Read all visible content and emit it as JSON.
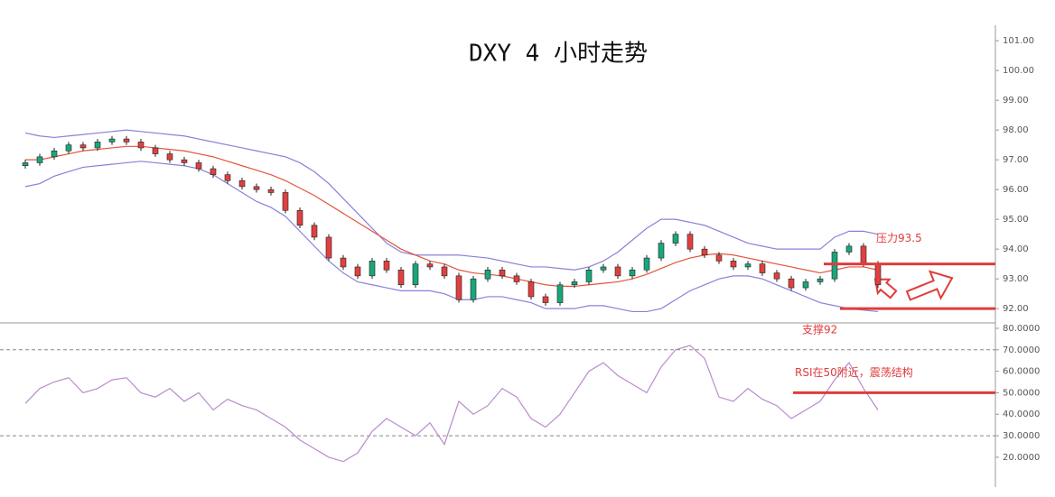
{
  "chart_data": [
    {
      "type": "candlestick",
      "title": "DXY 4 小时走势",
      "ylim": [
        91.52,
        101.52
      ],
      "yticks": [
        {
          "value": 92,
          "label": "92.00"
        },
        {
          "value": 93,
          "label": "93.00"
        },
        {
          "value": 94,
          "label": "94.00"
        },
        {
          "value": 95,
          "label": "95.00"
        },
        {
          "value": 96,
          "label": "96.00"
        },
        {
          "value": 97,
          "label": "97.00"
        },
        {
          "value": 98,
          "label": "98.00"
        },
        {
          "value": 99,
          "label": "99.00"
        },
        {
          "value": 100,
          "label": "100.00"
        },
        {
          "value": 101,
          "label": "101.00"
        }
      ],
      "up_color": "#1aa67a",
      "down_color": "#e04040",
      "open": [
        96.8,
        96.9,
        97.1,
        97.3,
        97.5,
        97.4,
        97.6,
        97.7,
        97.6,
        97.4,
        97.2,
        97.0,
        96.9,
        96.7,
        96.5,
        96.3,
        96.1,
        96.0,
        95.9,
        95.3,
        94.8,
        94.4,
        93.7,
        93.4,
        93.1,
        93.6,
        93.3,
        92.8,
        93.5,
        93.4,
        93.1,
        92.3,
        93.0,
        93.3,
        93.1,
        92.9,
        92.4,
        92.2,
        92.8,
        92.9,
        93.3,
        93.4,
        93.1,
        93.3,
        93.7,
        94.2,
        94.5,
        94.0,
        93.8,
        93.6,
        93.4,
        93.5,
        93.2,
        93.0,
        92.7,
        92.9,
        93.0,
        93.9,
        94.1,
        93.5
      ],
      "high": [
        97.0,
        97.2,
        97.4,
        97.6,
        97.6,
        97.7,
        97.8,
        97.8,
        97.7,
        97.5,
        97.3,
        97.1,
        97.0,
        96.8,
        96.6,
        96.4,
        96.2,
        96.1,
        96.0,
        95.4,
        94.9,
        94.5,
        93.8,
        93.5,
        93.7,
        93.7,
        93.4,
        93.6,
        93.6,
        93.5,
        93.2,
        93.1,
        93.4,
        93.4,
        93.2,
        93.0,
        92.5,
        92.9,
        93.0,
        93.4,
        93.5,
        93.5,
        93.4,
        93.8,
        94.3,
        94.6,
        94.6,
        94.1,
        93.9,
        93.7,
        93.6,
        93.6,
        93.3,
        93.1,
        93.0,
        93.1,
        94.0,
        94.2,
        94.2,
        93.6
      ],
      "low": [
        96.7,
        96.8,
        97.0,
        97.2,
        97.3,
        97.3,
        97.5,
        97.5,
        97.3,
        97.1,
        96.9,
        96.8,
        96.6,
        96.4,
        96.2,
        96.0,
        95.9,
        95.8,
        95.2,
        94.7,
        94.3,
        93.6,
        93.3,
        93.0,
        93.0,
        93.2,
        92.7,
        92.7,
        93.3,
        93.0,
        92.2,
        92.2,
        92.9,
        93.0,
        92.8,
        92.3,
        92.1,
        92.1,
        92.7,
        92.8,
        93.2,
        93.0,
        93.0,
        93.2,
        93.6,
        94.1,
        93.9,
        93.7,
        93.5,
        93.3,
        93.3,
        93.1,
        92.9,
        92.6,
        92.6,
        92.8,
        92.9,
        93.8,
        93.4,
        92.7
      ],
      "close": [
        96.9,
        97.1,
        97.3,
        97.5,
        97.4,
        97.6,
        97.7,
        97.6,
        97.4,
        97.2,
        97.0,
        96.9,
        96.7,
        96.5,
        96.3,
        96.1,
        96.0,
        95.9,
        95.3,
        94.8,
        94.4,
        93.7,
        93.4,
        93.1,
        93.6,
        93.3,
        92.8,
        93.5,
        93.4,
        93.1,
        92.3,
        93.0,
        93.3,
        93.1,
        92.9,
        92.4,
        92.2,
        92.8,
        92.9,
        93.3,
        93.4,
        93.1,
        93.3,
        93.7,
        94.2,
        94.5,
        94.0,
        93.8,
        93.6,
        93.4,
        93.5,
        93.2,
        93.0,
        92.7,
        92.9,
        93.0,
        93.9,
        94.1,
        93.5,
        92.8
      ],
      "bands": [
        {
          "color": "#8a80d8",
          "values": [
            97.9,
            97.8,
            97.75,
            97.8,
            97.85,
            97.9,
            97.95,
            98.0,
            97.95,
            97.9,
            97.85,
            97.8,
            97.7,
            97.6,
            97.5,
            97.4,
            97.3,
            97.2,
            97.1,
            96.9,
            96.6,
            96.2,
            95.7,
            95.2,
            94.7,
            94.2,
            93.9,
            93.8,
            93.8,
            93.8,
            93.8,
            93.75,
            93.7,
            93.6,
            93.5,
            93.4,
            93.4,
            93.35,
            93.3,
            93.4,
            93.6,
            93.9,
            94.3,
            94.7,
            95.0,
            95.0,
            94.9,
            94.8,
            94.6,
            94.4,
            94.2,
            94.1,
            94.0,
            94.0,
            94.0,
            94.0,
            94.4,
            94.6,
            94.6,
            94.5
          ]
        },
        {
          "color": "#e2553a",
          "values": [
            97.0,
            97.0,
            97.1,
            97.2,
            97.3,
            97.35,
            97.4,
            97.45,
            97.45,
            97.4,
            97.35,
            97.3,
            97.2,
            97.1,
            96.95,
            96.8,
            96.65,
            96.5,
            96.3,
            96.05,
            95.8,
            95.5,
            95.2,
            94.9,
            94.6,
            94.3,
            94.0,
            93.8,
            93.6,
            93.5,
            93.3,
            93.2,
            93.15,
            93.1,
            93.0,
            92.9,
            92.8,
            92.75,
            92.75,
            92.8,
            92.85,
            92.9,
            93.0,
            93.15,
            93.35,
            93.55,
            93.7,
            93.8,
            93.85,
            93.8,
            93.7,
            93.6,
            93.5,
            93.4,
            93.3,
            93.2,
            93.3,
            93.4,
            93.4,
            93.3
          ]
        },
        {
          "color": "#8a80d8",
          "values": [
            96.1,
            96.2,
            96.45,
            96.6,
            96.75,
            96.8,
            96.85,
            96.9,
            96.95,
            96.9,
            96.85,
            96.8,
            96.7,
            96.5,
            96.2,
            95.9,
            95.6,
            95.4,
            95.1,
            94.6,
            94.1,
            93.6,
            93.2,
            92.9,
            92.8,
            92.7,
            92.6,
            92.6,
            92.6,
            92.5,
            92.3,
            92.3,
            92.4,
            92.4,
            92.3,
            92.2,
            92.0,
            92.0,
            92.0,
            92.1,
            92.1,
            92.0,
            91.9,
            91.9,
            92.0,
            92.3,
            92.6,
            92.8,
            93.0,
            93.1,
            93.1,
            93.0,
            92.8,
            92.6,
            92.4,
            92.2,
            92.1,
            92.0,
            91.95,
            91.9
          ]
        }
      ],
      "annotations": [
        {
          "text": "压力93.5",
          "value": 93.5
        },
        {
          "text": "支撑92",
          "value": 92
        }
      ],
      "annotation_color": "#e03c3c"
    },
    {
      "type": "line",
      "ylim": [
        10.3,
        82.5
      ],
      "yticks": [
        {
          "value": 20,
          "label": "20.0000"
        },
        {
          "value": 30,
          "label": "30.0000"
        },
        {
          "value": 40,
          "label": "40.0000"
        },
        {
          "value": 50,
          "label": "50.0000"
        },
        {
          "value": 60,
          "label": "60.0000"
        },
        {
          "value": 70,
          "label": "70.0000"
        },
        {
          "value": 80,
          "label": "80.0000"
        }
      ],
      "levels": [
        70,
        30
      ],
      "series": [
        {
          "color": "#b98ccb",
          "values": [
            45,
            52,
            55,
            57,
            50,
            52,
            56,
            57,
            50,
            48,
            52,
            46,
            50,
            42,
            47,
            44,
            42,
            38,
            34,
            28,
            24,
            20,
            18,
            22,
            32,
            38,
            34,
            30,
            36,
            26,
            46,
            40,
            44,
            52,
            48,
            38,
            34,
            40,
            50,
            60,
            64,
            58,
            54,
            50,
            62,
            70,
            72,
            66,
            48,
            46,
            52,
            47,
            44,
            38,
            42,
            46,
            56,
            64,
            52,
            42
          ]
        }
      ],
      "annotations": [
        {
          "text": "RSI在50附近，震荡结构",
          "value": 50
        }
      ],
      "annotation_color": "#e03c3c"
    }
  ]
}
